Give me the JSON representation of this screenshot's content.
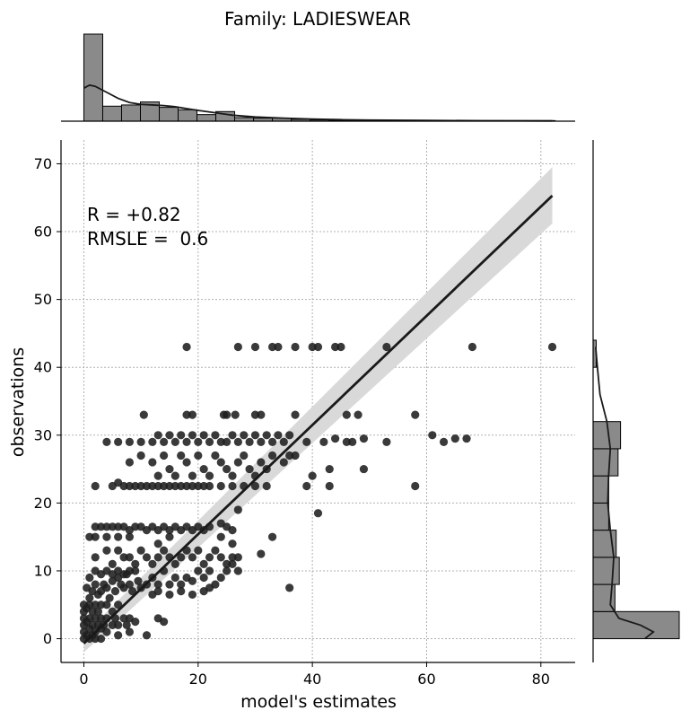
{
  "chart_data": {
    "type": "scatter",
    "title": "Family: LADIESWEAR",
    "xlabel": "model's estimates",
    "ylabel": "observations",
    "xlim": [
      -4,
      86
    ],
    "ylim": [
      -3.5,
      73.5
    ],
    "xticks": [
      0,
      20,
      40,
      60,
      80
    ],
    "yticks": [
      0,
      10,
      20,
      30,
      40,
      50,
      60,
      70
    ],
    "grid": true,
    "annotations": [
      "R = +0.82",
      "RMSLE =  0.6"
    ],
    "regression": {
      "x": [
        0,
        82
      ],
      "y": [
        -0.7,
        65.3
      ],
      "ci_lower": [
        -2.0,
        61.2
      ],
      "ci_upper": [
        0.6,
        69.5
      ]
    },
    "colors": {
      "points": "#1f1f1f",
      "line": "#1a1a1a",
      "band": "#d9d9d9",
      "hist": "#8a8a8a",
      "grid": "#b0b0b0"
    },
    "points": [
      [
        18,
        43
      ],
      [
        27,
        43
      ],
      [
        30,
        43
      ],
      [
        33,
        43
      ],
      [
        34,
        43
      ],
      [
        37,
        43
      ],
      [
        40,
        43
      ],
      [
        41,
        43
      ],
      [
        44,
        43
      ],
      [
        45,
        43
      ],
      [
        53,
        43
      ],
      [
        68,
        43
      ],
      [
        82,
        43
      ],
      [
        10.5,
        33
      ],
      [
        18,
        33
      ],
      [
        19,
        33
      ],
      [
        24.5,
        33
      ],
      [
        25,
        33
      ],
      [
        26.5,
        33
      ],
      [
        30,
        33
      ],
      [
        31,
        33
      ],
      [
        37,
        33
      ],
      [
        46,
        33
      ],
      [
        48,
        33
      ],
      [
        58,
        33
      ],
      [
        4,
        29
      ],
      [
        6,
        29
      ],
      [
        8,
        29
      ],
      [
        10,
        29
      ],
      [
        12,
        29
      ],
      [
        13,
        30
      ],
      [
        14,
        29
      ],
      [
        15,
        30
      ],
      [
        16,
        29
      ],
      [
        17,
        30
      ],
      [
        18,
        29
      ],
      [
        19,
        30
      ],
      [
        20,
        29
      ],
      [
        21,
        30
      ],
      [
        22,
        29
      ],
      [
        23,
        30
      ],
      [
        24,
        29
      ],
      [
        25,
        29
      ],
      [
        26,
        30
      ],
      [
        27,
        29
      ],
      [
        28,
        30
      ],
      [
        29,
        29
      ],
      [
        30,
        30
      ],
      [
        31,
        29
      ],
      [
        32,
        30
      ],
      [
        33,
        29
      ],
      [
        34,
        30
      ],
      [
        35,
        29
      ],
      [
        36,
        30
      ],
      [
        39,
        29
      ],
      [
        42,
        29
      ],
      [
        44,
        29.5
      ],
      [
        46,
        29
      ],
      [
        47,
        29
      ],
      [
        49,
        29.5
      ],
      [
        53,
        29
      ],
      [
        61,
        30
      ],
      [
        63,
        29
      ],
      [
        65,
        29.5
      ],
      [
        67,
        29.5
      ],
      [
        8,
        26
      ],
      [
        10,
        27
      ],
      [
        12,
        26
      ],
      [
        13,
        24
      ],
      [
        14,
        27
      ],
      [
        15,
        25
      ],
      [
        16,
        24
      ],
      [
        17,
        27
      ],
      [
        18,
        26
      ],
      [
        19,
        24
      ],
      [
        20,
        27
      ],
      [
        21,
        25
      ],
      [
        22,
        24
      ],
      [
        23,
        27
      ],
      [
        24,
        26
      ],
      [
        25,
        25
      ],
      [
        26,
        24
      ],
      [
        27,
        26
      ],
      [
        28,
        27
      ],
      [
        29,
        25
      ],
      [
        30,
        24
      ],
      [
        31,
        26
      ],
      [
        32,
        25
      ],
      [
        33,
        27
      ],
      [
        35,
        26
      ],
      [
        36,
        27
      ],
      [
        37,
        27
      ],
      [
        40,
        24
      ],
      [
        43,
        25
      ],
      [
        49,
        25
      ],
      [
        2,
        22.5
      ],
      [
        5,
        22.5
      ],
      [
        6,
        23
      ],
      [
        7,
        22.5
      ],
      [
        8,
        22.5
      ],
      [
        9,
        22.5
      ],
      [
        10,
        22.5
      ],
      [
        11,
        22.5
      ],
      [
        12,
        22.5
      ],
      [
        13,
        22.5
      ],
      [
        14,
        22.5
      ],
      [
        15,
        22.5
      ],
      [
        16,
        22.5
      ],
      [
        17,
        22.5
      ],
      [
        18,
        22.5
      ],
      [
        19,
        22.5
      ],
      [
        20,
        22.5
      ],
      [
        21,
        22.5
      ],
      [
        22,
        22.5
      ],
      [
        24,
        22.5
      ],
      [
        26,
        22.5
      ],
      [
        28,
        22.5
      ],
      [
        30,
        22.5
      ],
      [
        32,
        22.5
      ],
      [
        39,
        22.5
      ],
      [
        43,
        22.5
      ],
      [
        58,
        22.5
      ],
      [
        1,
        15
      ],
      [
        2,
        16.5
      ],
      [
        3,
        16.5
      ],
      [
        4,
        16.5
      ],
      [
        5,
        16.5
      ],
      [
        6,
        16.5
      ],
      [
        7,
        16.5
      ],
      [
        8,
        16
      ],
      [
        9,
        16.5
      ],
      [
        10,
        16.5
      ],
      [
        11,
        16
      ],
      [
        12,
        16.5
      ],
      [
        13,
        16
      ],
      [
        14,
        16.5
      ],
      [
        15,
        16
      ],
      [
        16,
        16.5
      ],
      [
        17,
        16
      ],
      [
        18,
        16.5
      ],
      [
        19,
        16
      ],
      [
        20,
        16.5
      ],
      [
        21,
        16
      ],
      [
        22,
        16.5
      ],
      [
        24,
        17
      ],
      [
        25,
        16.5
      ],
      [
        26,
        16
      ],
      [
        27,
        19
      ],
      [
        2,
        15
      ],
      [
        4,
        15
      ],
      [
        6,
        15
      ],
      [
        8,
        15
      ],
      [
        13,
        14
      ],
      [
        15,
        15
      ],
      [
        24,
        15
      ],
      [
        26,
        14
      ],
      [
        41,
        18.5
      ],
      [
        2,
        12
      ],
      [
        4,
        13
      ],
      [
        5,
        11
      ],
      [
        6,
        13
      ],
      [
        7,
        12
      ],
      [
        8,
        12
      ],
      [
        9,
        11
      ],
      [
        10,
        13
      ],
      [
        11,
        12
      ],
      [
        12,
        11
      ],
      [
        13,
        12
      ],
      [
        14,
        13
      ],
      [
        15,
        12
      ],
      [
        16,
        11
      ],
      [
        17,
        12
      ],
      [
        18,
        13
      ],
      [
        19,
        12
      ],
      [
        20,
        13
      ],
      [
        21,
        11
      ],
      [
        22,
        12
      ],
      [
        23,
        13
      ],
      [
        24,
        12
      ],
      [
        25,
        11
      ],
      [
        26,
        12
      ],
      [
        27,
        12
      ],
      [
        31,
        12.5
      ],
      [
        33,
        15
      ],
      [
        0.5,
        7.5
      ],
      [
        1,
        6
      ],
      [
        1.5,
        7
      ],
      [
        2,
        8
      ],
      [
        2.5,
        6.5
      ],
      [
        3,
        7
      ],
      [
        3.5,
        8
      ],
      [
        4,
        7.5
      ],
      [
        4.5,
        6
      ],
      [
        5,
        8.5
      ],
      [
        5.5,
        7
      ],
      [
        6,
        9
      ],
      [
        6.5,
        8
      ],
      [
        7,
        7.5
      ],
      [
        7.5,
        9.5
      ],
      [
        8,
        8
      ],
      [
        8.5,
        7
      ],
      [
        9,
        10
      ],
      [
        9.5,
        8.5
      ],
      [
        10,
        7.5
      ],
      [
        11,
        8
      ],
      [
        12,
        9
      ],
      [
        13,
        8
      ],
      [
        14,
        10
      ],
      [
        15,
        8
      ],
      [
        16,
        9
      ],
      [
        17,
        8
      ],
      [
        18,
        9
      ],
      [
        19,
        8.5
      ],
      [
        20,
        10
      ],
      [
        21,
        9
      ],
      [
        22,
        10
      ],
      [
        24,
        9
      ],
      [
        25,
        10
      ],
      [
        26,
        11
      ],
      [
        27,
        10
      ],
      [
        1,
        9
      ],
      [
        2,
        10
      ],
      [
        3,
        9.5
      ],
      [
        4,
        10
      ],
      [
        5,
        9.5
      ],
      [
        6,
        10
      ],
      [
        7,
        9.5
      ],
      [
        8,
        10
      ],
      [
        12,
        6.5
      ],
      [
        13,
        7
      ],
      [
        15,
        6.5
      ],
      [
        17,
        7
      ],
      [
        19,
        6.5
      ],
      [
        21,
        7
      ],
      [
        22,
        7.5
      ],
      [
        23,
        8
      ],
      [
        36,
        7.5
      ],
      [
        0,
        0
      ],
      [
        0,
        1
      ],
      [
        0,
        2
      ],
      [
        0,
        3
      ],
      [
        0,
        4
      ],
      [
        0,
        5
      ],
      [
        0.5,
        0.5
      ],
      [
        0.5,
        2.5
      ],
      [
        0.5,
        4.5
      ],
      [
        1,
        0
      ],
      [
        1,
        1.5
      ],
      [
        1,
        3
      ],
      [
        1,
        5
      ],
      [
        1.5,
        0.5
      ],
      [
        1.5,
        2
      ],
      [
        1.5,
        4
      ],
      [
        2,
        0
      ],
      [
        2,
        1
      ],
      [
        2,
        3
      ],
      [
        2,
        5
      ],
      [
        2.5,
        2
      ],
      [
        2.5,
        4
      ],
      [
        3,
        0
      ],
      [
        3,
        1.5
      ],
      [
        3,
        3
      ],
      [
        3,
        5
      ],
      [
        3.5,
        2
      ],
      [
        4,
        1
      ],
      [
        4,
        3
      ],
      [
        4,
        5
      ],
      [
        5,
        2
      ],
      [
        5,
        4
      ],
      [
        5.5,
        3
      ],
      [
        6,
        2
      ],
      [
        6,
        5
      ],
      [
        7,
        3
      ],
      [
        7.5,
        2
      ],
      [
        8,
        3
      ],
      [
        8,
        1
      ],
      [
        9,
        2.5
      ],
      [
        11,
        0.5
      ],
      [
        13,
        3
      ],
      [
        14,
        2.5
      ],
      [
        6,
        0.5
      ]
    ],
    "marginal_x": {
      "bin_width": 3.3,
      "start": 0,
      "counts": [
        145,
        25,
        27,
        32,
        23,
        19,
        11,
        16,
        6,
        5,
        5,
        3,
        2,
        1,
        1,
        1,
        1,
        1,
        1,
        1,
        1,
        1,
        1,
        1,
        1
      ],
      "kde_x": [
        0,
        1,
        2,
        4,
        6,
        8,
        10,
        12,
        14,
        16,
        18,
        20,
        23,
        26,
        30,
        35,
        40,
        45,
        50,
        60,
        70,
        82
      ],
      "kde_y": [
        55,
        60,
        58,
        48,
        38,
        31,
        28,
        27,
        26,
        24,
        21,
        18,
        14,
        10,
        7,
        5,
        3.5,
        2.5,
        1.8,
        1.2,
        0.8,
        0.5
      ]
    },
    "marginal_y": {
      "bin_width": 4,
      "start": 0,
      "counts": [
        138,
        35,
        42,
        37,
        25,
        25,
        40,
        44,
        0,
        0,
        5
      ]
    }
  }
}
